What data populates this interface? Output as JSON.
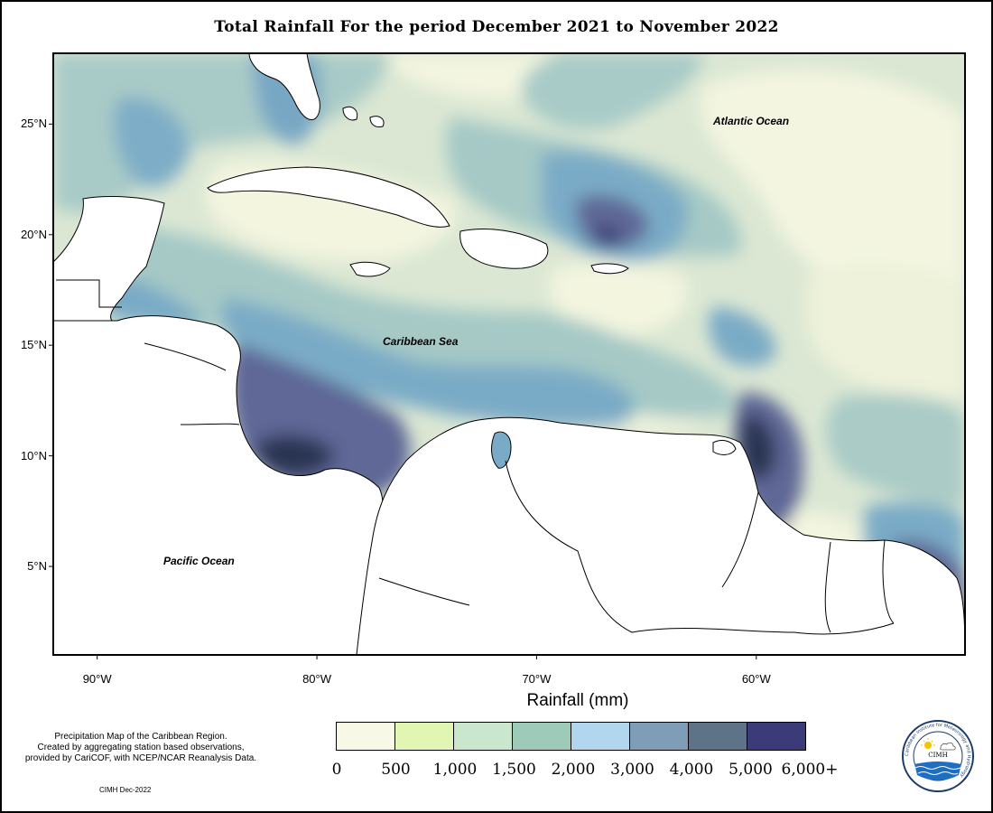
{
  "title": "Total Rainfall For the period December 2021 to November 2022",
  "lat_ticks": [
    {
      "label": "25°N",
      "lat": 25
    },
    {
      "label": "20°N",
      "lat": 20
    },
    {
      "label": "15°N",
      "lat": 15
    },
    {
      "label": "10°N",
      "lat": 10
    },
    {
      "label": "5°N",
      "lat": 5
    }
  ],
  "lon_ticks": [
    {
      "label": "90°W",
      "lon": -90
    },
    {
      "label": "80°W",
      "lon": -80
    },
    {
      "label": "70°W",
      "lon": -70
    },
    {
      "label": "60°W",
      "lon": -60
    }
  ],
  "map_extent": {
    "lon_min": -92,
    "lon_max": -50.5,
    "lat_min": 1.0,
    "lat_max": 28.2
  },
  "ocean_labels": {
    "atlantic": "Atlantic Ocean",
    "caribbean": "Caribbean Sea",
    "pacific": "Pacific Ocean"
  },
  "legend": {
    "title": "Rainfall (mm)",
    "colors": [
      "#f8f8e6",
      "#e2f6b4",
      "#cae6cc",
      "#9dcab9",
      "#b2d6ee",
      "#7f9db6",
      "#5e7388",
      "#3b3b7a"
    ],
    "ticks": [
      "0",
      "500",
      "1,000",
      "1,500",
      "2,000",
      "3,000",
      "4,000",
      "5,000",
      "6,000+"
    ]
  },
  "note": {
    "line1": "Precipitation Map of the Caribbean Region.",
    "line2": "Created by aggregating station based observations,",
    "line3": "provided by CariCOF, with NCEP/NCAR Reanalysis Data."
  },
  "credit": "CIMH Dec-2022",
  "logo": {
    "ring_text": "Caribbean Institute for Meteorology and Hydrology",
    "center_text": "CIMH"
  },
  "colors": {
    "rain_0": "#f4f6e2",
    "rain_500": "#dde9d3",
    "rain_1000": "#c7ded6",
    "rain_1500": "#a6cac9",
    "rain_2000": "#7fb0c9",
    "rain_3000": "#6f8fb0",
    "rain_4000": "#5a6595",
    "rain_5000": "#2c3452",
    "land": "#ffffff",
    "coast": "#000000"
  }
}
